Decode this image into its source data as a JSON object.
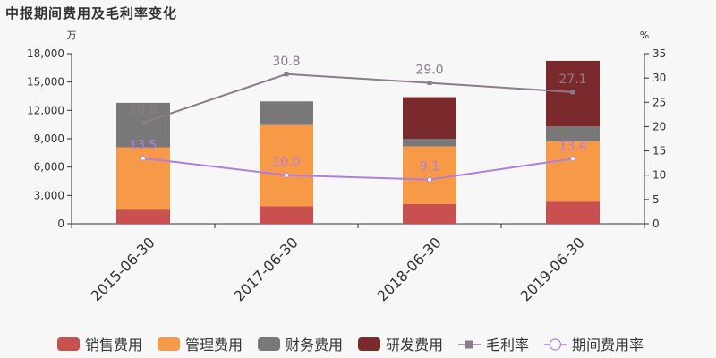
{
  "chart_data": {
    "type": "bar",
    "title": "中报期间费用及毛利率变化",
    "left_unit": "万",
    "right_unit": "%",
    "categories": [
      "2015-06-30",
      "2017-06-30",
      "2018-06-30",
      "2019-06-30"
    ],
    "ylim_left": [
      0,
      18000
    ],
    "yticks_left": [
      0,
      3000,
      6000,
      9000,
      12000,
      15000,
      18000
    ],
    "ytick_labels_left": [
      "0",
      "3,000",
      "6,000",
      "9,000",
      "12,000",
      "15,000",
      "18,000"
    ],
    "ylim_right": [
      0,
      35
    ],
    "yticks_right": [
      0,
      5,
      10,
      15,
      20,
      25,
      30,
      35
    ],
    "ytick_labels_right": [
      "0",
      "5",
      "10",
      "15",
      "20",
      "25",
      "30",
      "35"
    ],
    "stacked_series": [
      {
        "name": "销售费用",
        "color": "#c8504f",
        "values": [
          1500,
          1850,
          2100,
          2350
        ]
      },
      {
        "name": "管理费用",
        "color": "#f79a47",
        "values": [
          6600,
          8600,
          6100,
          6400
        ]
      },
      {
        "name": "财务费用",
        "color": "#787878",
        "values": [
          4700,
          2500,
          800,
          1550
        ]
      },
      {
        "name": "研发费用",
        "color": "#7b2a2c",
        "values": [
          0,
          0,
          4400,
          6950
        ]
      }
    ],
    "line_series": [
      {
        "name": "毛利率",
        "color": "#8b7b8b",
        "marker": "square",
        "values": [
          20.8,
          30.8,
          29.0,
          27.1
        ],
        "labels": [
          "20.8",
          "30.8",
          "29.0",
          "27.1"
        ]
      },
      {
        "name": "期间费用率",
        "color": "#b07ee0",
        "marker": "circle",
        "values": [
          13.5,
          10.0,
          9.1,
          13.4
        ],
        "labels": [
          "13.5",
          "10.0",
          "9.1",
          "13.4"
        ]
      }
    ],
    "legend_position": "bottom"
  }
}
